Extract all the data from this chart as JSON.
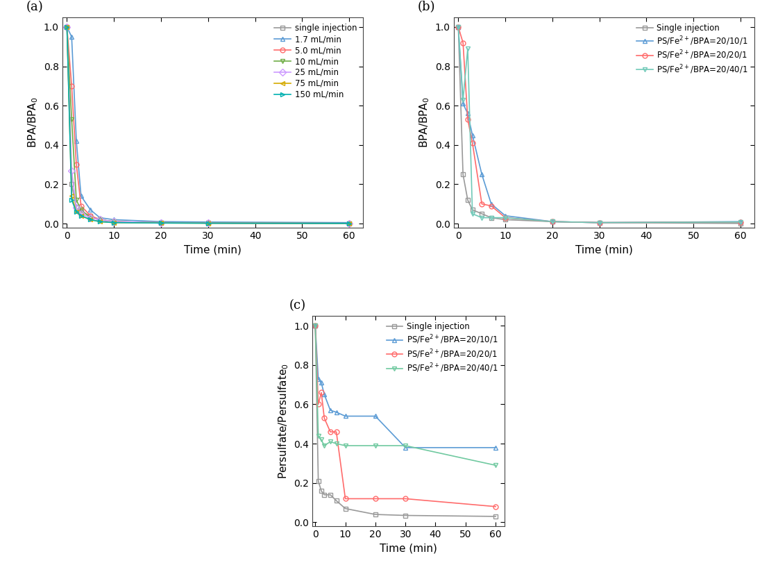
{
  "panel_a": {
    "title": "(a)",
    "xlabel": "Time (min)",
    "ylabel": "BPA/BPA$_0$",
    "series": [
      {
        "label": "single injection",
        "color": "#999999",
        "marker": "s",
        "x": [
          0,
          1,
          2,
          3,
          5,
          7,
          10,
          20,
          30,
          60
        ],
        "y": [
          1.0,
          0.2,
          0.08,
          0.06,
          0.04,
          0.02,
          0.01,
          0.005,
          0.003,
          0.001
        ]
      },
      {
        "label": "1.7 mL/min",
        "color": "#5B9BD5",
        "marker": "^",
        "x": [
          0,
          1,
          2,
          3,
          5,
          7,
          10,
          20,
          30,
          60
        ],
        "y": [
          1.0,
          0.95,
          0.42,
          0.14,
          0.07,
          0.03,
          0.02,
          0.01,
          0.008,
          0.005
        ]
      },
      {
        "label": "5.0 mL/min",
        "color": "#FF6B6B",
        "marker": "o",
        "x": [
          0,
          1,
          2,
          3,
          5,
          7,
          10,
          20,
          30,
          60
        ],
        "y": [
          1.0,
          0.7,
          0.3,
          0.09,
          0.04,
          0.02,
          0.01,
          0.005,
          0.003,
          0.001
        ]
      },
      {
        "label": "10 mL/min",
        "color": "#70AD47",
        "marker": "v",
        "x": [
          0,
          1,
          2,
          3,
          5,
          7,
          10,
          20,
          30,
          60
        ],
        "y": [
          1.0,
          0.53,
          0.12,
          0.07,
          0.03,
          0.02,
          0.01,
          0.005,
          0.003,
          0.001
        ]
      },
      {
        "label": "25 mL/min",
        "color": "#CC99FF",
        "marker": "D",
        "x": [
          0,
          1,
          2,
          3,
          5,
          7,
          10,
          20,
          30,
          60
        ],
        "y": [
          1.0,
          0.27,
          0.08,
          0.05,
          0.03,
          0.02,
          0.01,
          0.005,
          0.003,
          0.001
        ]
      },
      {
        "label": "75 mL/min",
        "color": "#D4AA00",
        "marker": "<",
        "x": [
          0,
          1,
          2,
          3,
          5,
          7,
          10,
          20,
          30,
          60
        ],
        "y": [
          1.0,
          0.14,
          0.06,
          0.04,
          0.02,
          0.01,
          0.005,
          0.003,
          0.002,
          0.001
        ]
      },
      {
        "label": "150 mL/min",
        "color": "#00B0B0",
        "marker": ">",
        "x": [
          0,
          1,
          2,
          3,
          5,
          7,
          10,
          20,
          30,
          60
        ],
        "y": [
          1.0,
          0.12,
          0.06,
          0.04,
          0.02,
          0.01,
          0.005,
          0.003,
          0.002,
          0.001
        ]
      }
    ],
    "xlim": [
      -1,
      63
    ],
    "ylim": [
      -0.02,
      1.05
    ],
    "xticks": [
      0,
      10,
      20,
      30,
      40,
      50,
      60
    ],
    "yticks": [
      0.0,
      0.2,
      0.4,
      0.6,
      0.8,
      1.0
    ]
  },
  "panel_b": {
    "title": "(b)",
    "xlabel": "Time (min)",
    "ylabel": "BPA/BPA$_0$",
    "series": [
      {
        "label": "Single injection",
        "color": "#999999",
        "marker": "s",
        "x": [
          0,
          1,
          2,
          3,
          5,
          7,
          10,
          20,
          30,
          60
        ],
        "y": [
          1.0,
          0.25,
          0.12,
          0.07,
          0.05,
          0.03,
          0.02,
          0.01,
          0.005,
          0.001
        ]
      },
      {
        "label": "PS/Fe$^{2+}$/BPA=20/10/1",
        "color": "#5B9BD5",
        "marker": "^",
        "x": [
          0,
          1,
          2,
          3,
          5,
          7,
          10,
          20,
          30,
          60
        ],
        "y": [
          1.0,
          0.61,
          0.56,
          0.45,
          0.25,
          0.1,
          0.04,
          0.01,
          0.005,
          0.01
        ]
      },
      {
        "label": "PS/Fe$^{2+}$/BPA=20/20/1",
        "color": "#FF6B6B",
        "marker": "o",
        "x": [
          0,
          1,
          2,
          3,
          5,
          7,
          10,
          20,
          30,
          60
        ],
        "y": [
          1.0,
          0.92,
          0.53,
          0.41,
          0.1,
          0.09,
          0.03,
          0.01,
          0.005,
          0.008
        ]
      },
      {
        "label": "PS/Fe$^{2+}$/BPA=20/40/1",
        "color": "#70C9B8",
        "marker": "v",
        "x": [
          0,
          1,
          2,
          3,
          5,
          7,
          10,
          20,
          30,
          60
        ],
        "y": [
          1.0,
          0.63,
          0.89,
          0.05,
          0.03,
          0.03,
          0.03,
          0.01,
          0.005,
          0.008
        ]
      }
    ],
    "xlim": [
      -1,
      63
    ],
    "ylim": [
      -0.02,
      1.05
    ],
    "xticks": [
      0,
      10,
      20,
      30,
      40,
      50,
      60
    ],
    "yticks": [
      0.0,
      0.2,
      0.4,
      0.6,
      0.8,
      1.0
    ]
  },
  "panel_c": {
    "title": "(c)",
    "xlabel": "Time (min)",
    "ylabel": "Persulfate/Persulfate$_0$",
    "series": [
      {
        "label": "Single injection",
        "color": "#999999",
        "marker": "s",
        "x": [
          0,
          1,
          2,
          3,
          5,
          7,
          10,
          20,
          30,
          60
        ],
        "y": [
          1.0,
          0.21,
          0.16,
          0.14,
          0.14,
          0.11,
          0.07,
          0.04,
          0.035,
          0.03
        ]
      },
      {
        "label": "PS/Fe$^{2+}$/BPA=20/10/1",
        "color": "#5B9BD5",
        "marker": "^",
        "x": [
          0,
          1,
          2,
          3,
          5,
          7,
          10,
          20,
          30,
          60
        ],
        "y": [
          1.0,
          0.73,
          0.71,
          0.65,
          0.57,
          0.56,
          0.54,
          0.54,
          0.38,
          0.38
        ]
      },
      {
        "label": "PS/Fe$^{2+}$/BPA=20/20/1",
        "color": "#FF6B6B",
        "marker": "o",
        "x": [
          0,
          1,
          2,
          3,
          5,
          7,
          10,
          20,
          30,
          60
        ],
        "y": [
          1.0,
          0.6,
          0.66,
          0.53,
          0.46,
          0.46,
          0.12,
          0.12,
          0.12,
          0.08
        ]
      },
      {
        "label": "PS/Fe$^{2+}$/BPA=20/40/1",
        "color": "#70C9A0",
        "marker": "v",
        "x": [
          0,
          1,
          2,
          3,
          5,
          7,
          10,
          20,
          30,
          60
        ],
        "y": [
          1.0,
          0.44,
          0.42,
          0.39,
          0.41,
          0.4,
          0.39,
          0.39,
          0.39,
          0.29
        ]
      }
    ],
    "xlim": [
      -1,
      63
    ],
    "ylim": [
      -0.02,
      1.05
    ],
    "xticks": [
      0,
      10,
      20,
      30,
      40,
      50,
      60
    ],
    "yticks": [
      0.0,
      0.2,
      0.4,
      0.6,
      0.8,
      1.0
    ]
  }
}
